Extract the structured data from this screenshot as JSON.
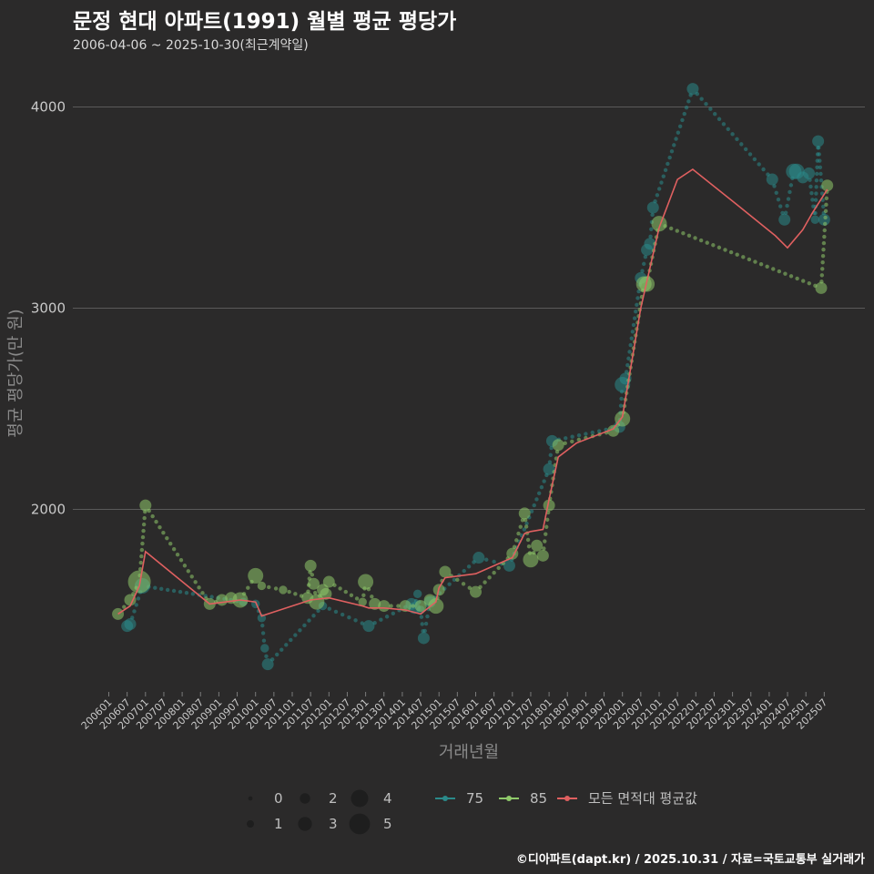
{
  "header": {
    "title": "문정 현대 아파트(1991) 월별 평균 평당가",
    "subtitle": "2006-04-06 ~ 2025-10-30(최근계약일)"
  },
  "footer": {
    "credit": "©디아파트(dapt.kr) / 2025.10.31 / 자료=국토교통부 실거래가"
  },
  "colors": {
    "background": "#2b2a2a",
    "grid": "#5a5a5a",
    "s75": "#2a8a8a",
    "s85": "#8fc96a",
    "avg": "#e06060"
  },
  "chart_data": {
    "type": "line",
    "title": "문정 현대 아파트(1991) 월별 평균 평당가",
    "xlabel": "거래년월",
    "ylabel": "평균 평당가(만 원)",
    "ylim": [
      1100,
      4200
    ],
    "yticks": [
      2000,
      3000,
      4000
    ],
    "x_range": [
      "200601",
      "202510"
    ],
    "x_ticks": [
      "200601",
      "200607",
      "200701",
      "200707",
      "200801",
      "200807",
      "200901",
      "200907",
      "201001",
      "201007",
      "201101",
      "201107",
      "201201",
      "201207",
      "201301",
      "201307",
      "201401",
      "201407",
      "201501",
      "201507",
      "201601",
      "201607",
      "201701",
      "201707",
      "201801",
      "201807",
      "201901",
      "201907",
      "202001",
      "202007",
      "202101",
      "202107",
      "202201",
      "202207",
      "202301",
      "202307",
      "202401",
      "202407",
      "202501",
      "202507"
    ],
    "size_legend": {
      "title": "",
      "values": [
        0,
        1,
        2,
        3,
        4,
        5
      ]
    },
    "series": [
      {
        "name": "75",
        "color": "#2a8a8a",
        "points": [
          [
            "200607",
            1420,
            2
          ],
          [
            "200608",
            1430,
            2
          ],
          [
            "200612",
            1620,
            3
          ],
          [
            "200909",
            1540,
            1
          ],
          [
            "201001",
            1530,
            1
          ],
          [
            "201003",
            1460,
            1
          ],
          [
            "201004",
            1310,
            1
          ],
          [
            "201005",
            1230,
            2
          ],
          [
            "201111",
            1520,
            1
          ],
          [
            "201302",
            1420,
            2
          ],
          [
            "201404",
            1530,
            2
          ],
          [
            "201405",
            1510,
            2
          ],
          [
            "201406",
            1580,
            1
          ],
          [
            "201407",
            1500,
            1
          ],
          [
            "201408",
            1360,
            2
          ],
          [
            "201410",
            1540,
            2
          ],
          [
            "201602",
            1760,
            2
          ],
          [
            "201612",
            1720,
            2
          ],
          [
            "201801",
            2200,
            2
          ],
          [
            "201802",
            2340,
            2
          ],
          [
            "201912",
            2410,
            2
          ],
          [
            "202001",
            2620,
            3
          ],
          [
            "202002",
            2650,
            2
          ],
          [
            "202007",
            3150,
            2
          ],
          [
            "202009",
            3290,
            2
          ],
          [
            "202010",
            3320,
            2
          ],
          [
            "202011",
            3500,
            2
          ],
          [
            "202112",
            4090,
            2
          ],
          [
            "202402",
            3640,
            2
          ],
          [
            "202406",
            3440,
            2
          ],
          [
            "202409",
            3680,
            3
          ],
          [
            "202410",
            3680,
            3
          ],
          [
            "202412",
            3650,
            2
          ],
          [
            "202502",
            3670,
            2
          ],
          [
            "202504",
            3440,
            1
          ],
          [
            "202505",
            3830,
            2
          ],
          [
            "202507",
            3440,
            2
          ]
        ]
      },
      {
        "name": "85",
        "color": "#8fc96a",
        "points": [
          [
            "200604",
            1480,
            2
          ],
          [
            "200608",
            1550,
            2
          ],
          [
            "200611",
            1640,
            5
          ],
          [
            "200701",
            2020,
            2
          ],
          [
            "200810",
            1530,
            2
          ],
          [
            "200902",
            1550,
            2
          ],
          [
            "200905",
            1560,
            2
          ],
          [
            "200908",
            1550,
            3
          ],
          [
            "201001",
            1670,
            3
          ],
          [
            "201003",
            1620,
            1
          ],
          [
            "201010",
            1600,
            1
          ],
          [
            "201106",
            1560,
            2
          ],
          [
            "201107",
            1720,
            2
          ],
          [
            "201108",
            1630,
            2
          ],
          [
            "201109",
            1540,
            3
          ],
          [
            "201111",
            1600,
            2
          ],
          [
            "201112",
            1580,
            2
          ],
          [
            "201201",
            1640,
            2
          ],
          [
            "201212",
            1540,
            1
          ],
          [
            "201301",
            1640,
            3
          ],
          [
            "201304",
            1530,
            2
          ],
          [
            "201307",
            1520,
            2
          ],
          [
            "201402",
            1520,
            2
          ],
          [
            "201407",
            1520,
            2
          ],
          [
            "201410",
            1550,
            2
          ],
          [
            "201412",
            1520,
            3
          ],
          [
            "201501",
            1600,
            2
          ],
          [
            "201503",
            1690,
            2
          ],
          [
            "201601",
            1590,
            2
          ],
          [
            "201701",
            1780,
            2
          ],
          [
            "201705",
            1980,
            2
          ],
          [
            "201707",
            1750,
            3
          ],
          [
            "201709",
            1820,
            2
          ],
          [
            "201711",
            1770,
            2
          ],
          [
            "201801",
            2020,
            2
          ],
          [
            "201804",
            2320,
            2
          ],
          [
            "201910",
            2390,
            2
          ],
          [
            "202001",
            2450,
            3
          ],
          [
            "202008",
            3120,
            3
          ],
          [
            "202009",
            3120,
            3
          ],
          [
            "202101",
            3420,
            3
          ],
          [
            "202506",
            3100,
            2
          ],
          [
            "202508",
            3610,
            2
          ]
        ]
      },
      {
        "name": "모든 면적대 평균값",
        "color": "#e06060",
        "points": [
          [
            "200604",
            1480
          ],
          [
            "200608",
            1520
          ],
          [
            "200611",
            1620
          ],
          [
            "200701",
            1790
          ],
          [
            "200810",
            1530
          ],
          [
            "200908",
            1550
          ],
          [
            "201001",
            1540
          ],
          [
            "201003",
            1470
          ],
          [
            "201005",
            1480
          ],
          [
            "201107",
            1550
          ],
          [
            "201201",
            1560
          ],
          [
            "201212",
            1520
          ],
          [
            "201302",
            1510
          ],
          [
            "201307",
            1510
          ],
          [
            "201402",
            1500
          ],
          [
            "201407",
            1480
          ],
          [
            "201412",
            1540
          ],
          [
            "201501",
            1610
          ],
          [
            "201503",
            1660
          ],
          [
            "201601",
            1680
          ],
          [
            "201701",
            1760
          ],
          [
            "201705",
            1880
          ],
          [
            "201707",
            1890
          ],
          [
            "201711",
            1900
          ],
          [
            "201801",
            2050
          ],
          [
            "201804",
            2260
          ],
          [
            "201810",
            2330
          ],
          [
            "201910",
            2400
          ],
          [
            "202001",
            2460
          ],
          [
            "202007",
            3000
          ],
          [
            "202101",
            3400
          ],
          [
            "202107",
            3640
          ],
          [
            "202112",
            3690
          ],
          [
            "202302",
            3520
          ],
          [
            "202403",
            3360
          ],
          [
            "202407",
            3300
          ],
          [
            "202412",
            3390
          ],
          [
            "202503",
            3470
          ],
          [
            "202508",
            3590
          ]
        ]
      }
    ]
  }
}
